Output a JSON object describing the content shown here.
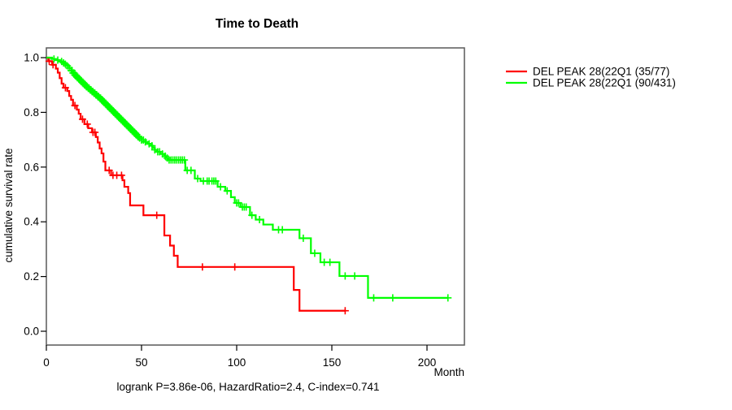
{
  "figure": {
    "title": "Time to Death",
    "subtitle": "logrank P=3.86e-06, HazardRatio=2.4, C-index=0.741",
    "x_axis_label": "Month",
    "y_axis_label": "cumulative survival rate"
  },
  "legend": {
    "items": [
      {
        "label": "DEL PEAK 28(22Q1 (35/77)",
        "color": "#ff0000"
      },
      {
        "label": "DEL PEAK 28(22Q1 (90/431)",
        "color": "#00ff00"
      }
    ]
  },
  "chart_data": {
    "type": "line",
    "subtype": "kaplan-meier-step",
    "title": "Time to Death",
    "xlabel": "Month",
    "ylabel": "cumulative survival rate",
    "annotation": "logrank P=3.86e-06, HazardRatio=2.4, C-index=0.741",
    "xlim": [
      0,
      220
    ],
    "ylim": [
      0.0,
      1.0
    ],
    "x_ticks": [
      0,
      50,
      100,
      150,
      200
    ],
    "x_tick_labels": [
      "0",
      "50",
      "100",
      "150",
      "200"
    ],
    "y_ticks": [
      0.0,
      0.2,
      0.4,
      0.6,
      0.8,
      1.0
    ],
    "y_tick_labels": [
      "0.0",
      "0.2",
      "0.4",
      "0.6",
      "0.8",
      "1.0"
    ],
    "grid": false,
    "legend_position": "right",
    "box_color": "#595959",
    "series": [
      {
        "name": "DEL PEAK 28(22Q1 (35/77)",
        "events": "35/77",
        "color": "#ff0000",
        "end_x": 157,
        "points": [
          [
            0,
            1.0
          ],
          [
            1,
            0.987
          ],
          [
            3,
            0.974
          ],
          [
            5,
            0.96
          ],
          [
            6,
            0.945
          ],
          [
            7,
            0.925
          ],
          [
            8,
            0.905
          ],
          [
            9,
            0.89
          ],
          [
            11,
            0.878
          ],
          [
            12,
            0.86
          ],
          [
            13,
            0.846
          ],
          [
            14,
            0.825
          ],
          [
            16,
            0.81
          ],
          [
            17,
            0.795
          ],
          [
            18,
            0.775
          ],
          [
            20,
            0.757
          ],
          [
            22,
            0.742
          ],
          [
            24,
            0.727
          ],
          [
            26,
            0.71
          ],
          [
            27,
            0.69
          ],
          [
            28,
            0.668
          ],
          [
            29,
            0.65
          ],
          [
            30,
            0.62
          ],
          [
            31,
            0.588
          ],
          [
            34,
            0.57
          ],
          [
            40,
            0.552
          ],
          [
            41,
            0.528
          ],
          [
            43,
            0.505
          ],
          [
            44,
            0.46
          ],
          [
            51,
            0.424
          ],
          [
            62,
            0.35
          ],
          [
            65,
            0.313
          ],
          [
            67,
            0.276
          ],
          [
            69,
            0.235
          ],
          [
            130,
            0.151
          ],
          [
            133,
            0.075
          ]
        ],
        "censor_times": [
          1.5,
          3.5,
          10,
          15,
          19,
          21.5,
          24.5,
          25.5,
          33,
          35,
          37,
          39.5,
          58,
          82,
          99,
          157
        ]
      },
      {
        "name": "DEL PEAK 28(22Q1 (90/431)",
        "events": "90/431",
        "color": "#00ff00",
        "end_x": 211,
        "points": [
          [
            0,
            1.0
          ],
          [
            3,
            0.995
          ],
          [
            5,
            0.991
          ],
          [
            7,
            0.986
          ],
          [
            9,
            0.981
          ],
          [
            10,
            0.976
          ],
          [
            11,
            0.97
          ],
          [
            12,
            0.962
          ],
          [
            13,
            0.953
          ],
          [
            14,
            0.944
          ],
          [
            15,
            0.936
          ],
          [
            16,
            0.929
          ],
          [
            17,
            0.922
          ],
          [
            18,
            0.915
          ],
          [
            19,
            0.908
          ],
          [
            20,
            0.901
          ],
          [
            21,
            0.894
          ],
          [
            22,
            0.888
          ],
          [
            23,
            0.882
          ],
          [
            24,
            0.876
          ],
          [
            25,
            0.87
          ],
          [
            26,
            0.864
          ],
          [
            27,
            0.858
          ],
          [
            28,
            0.852
          ],
          [
            29,
            0.845
          ],
          [
            30,
            0.838
          ],
          [
            31,
            0.831
          ],
          [
            32,
            0.824
          ],
          [
            33,
            0.817
          ],
          [
            34,
            0.81
          ],
          [
            35,
            0.803
          ],
          [
            36,
            0.796
          ],
          [
            37,
            0.789
          ],
          [
            38,
            0.782
          ],
          [
            39,
            0.775
          ],
          [
            40,
            0.768
          ],
          [
            41,
            0.761
          ],
          [
            42,
            0.754
          ],
          [
            43,
            0.747
          ],
          [
            44,
            0.74
          ],
          [
            45,
            0.733
          ],
          [
            46,
            0.726
          ],
          [
            47,
            0.719
          ],
          [
            48,
            0.712
          ],
          [
            49,
            0.706
          ],
          [
            50,
            0.699
          ],
          [
            52,
            0.692
          ],
          [
            53,
            0.685
          ],
          [
            55,
            0.678
          ],
          [
            56,
            0.67
          ],
          [
            57,
            0.663
          ],
          [
            58,
            0.656
          ],
          [
            60,
            0.648
          ],
          [
            62,
            0.64
          ],
          [
            63,
            0.633
          ],
          [
            64,
            0.626
          ],
          [
            73,
            0.588
          ],
          [
            78,
            0.558
          ],
          [
            81,
            0.549
          ],
          [
            90,
            0.528
          ],
          [
            94,
            0.513
          ],
          [
            97,
            0.49
          ],
          [
            99,
            0.469
          ],
          [
            102,
            0.454
          ],
          [
            107,
            0.424
          ],
          [
            110,
            0.408
          ],
          [
            114,
            0.39
          ],
          [
            119,
            0.371
          ],
          [
            133,
            0.34
          ],
          [
            139,
            0.285
          ],
          [
            144,
            0.252
          ],
          [
            154,
            0.202
          ],
          [
            169,
            0.122
          ]
        ],
        "censor_times": [
          4,
          6,
          8,
          9,
          10,
          11,
          12,
          13,
          13.5,
          14,
          14.5,
          15,
          15.5,
          16,
          16.5,
          17,
          17.5,
          18,
          18.5,
          19,
          19.5,
          20,
          20.5,
          21,
          21.5,
          22,
          22.5,
          23,
          23.5,
          24,
          24.5,
          25,
          25.5,
          26,
          26.5,
          27,
          27.5,
          28,
          28.5,
          29,
          29.5,
          30,
          30.5,
          31,
          31.5,
          32,
          32.5,
          33,
          33.5,
          34,
          34.5,
          35,
          35.5,
          36,
          36.5,
          37,
          37.5,
          38,
          38.5,
          39,
          39.5,
          40,
          40.5,
          41,
          41.5,
          42,
          42.5,
          43,
          43.5,
          44,
          44.5,
          45,
          45.5,
          46,
          46.5,
          47,
          47.5,
          48,
          48.5,
          49,
          50,
          51,
          52,
          54,
          55.5,
          57,
          58.5,
          59.5,
          61,
          62.5,
          63.5,
          64.5,
          65.5,
          66.5,
          67.5,
          68.5,
          69.5,
          70.5,
          71.5,
          72.5,
          74,
          76,
          79.5,
          82.5,
          84.5,
          85.5,
          87,
          88,
          89,
          91.5,
          95,
          100,
          101,
          103,
          104,
          105,
          108,
          112,
          122,
          124,
          135,
          141,
          146,
          149,
          157,
          162,
          172,
          182,
          211
        ]
      }
    ]
  }
}
